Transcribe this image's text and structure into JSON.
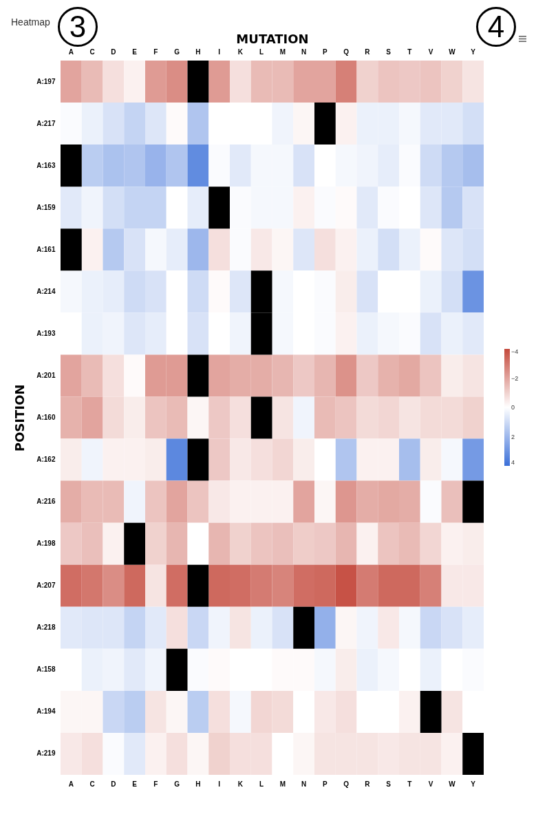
{
  "chart_data": {
    "type": "heatmap",
    "title": "Heatmap",
    "xlabel": "MUTATION",
    "ylabel": "POSITION",
    "categories": [
      "A",
      "C",
      "D",
      "E",
      "F",
      "G",
      "H",
      "I",
      "K",
      "L",
      "M",
      "N",
      "P",
      "Q",
      "R",
      "S",
      "T",
      "V",
      "W",
      "Y"
    ],
    "y_categories": [
      "A:197",
      "A:217",
      "A:163",
      "A:159",
      "A:161",
      "A:214",
      "A:193",
      "A:201",
      "A:160",
      "A:162",
      "A:216",
      "A:198",
      "A:207",
      "A:218",
      "A:158",
      "A:194",
      "A:219"
    ],
    "cells": [
      [
        -2,
        -1.5,
        -0.7,
        -0.3,
        -2.2,
        -2.5,
        null,
        -2.2,
        -0.7,
        -1.5,
        -1.5,
        -2,
        -2,
        -2.8,
        -1,
        -1.3,
        -1.2,
        -1.3,
        -1,
        -0.6
      ],
      [
        0.1,
        0.4,
        0.8,
        1.2,
        0.7,
        -0.1,
        1.6,
        0,
        0,
        0,
        0.3,
        -0.2,
        null,
        -0.3,
        0.4,
        0.4,
        0.2,
        0.6,
        0.6,
        0.9
      ],
      [
        null,
        1.4,
        1.7,
        1.6,
        2.1,
        1.6,
        3.2,
        0.1,
        0.6,
        0.2,
        0.2,
        0.8,
        0,
        0.2,
        0.3,
        0.5,
        0.1,
        1,
        1.5,
        1.8
      ],
      [
        0.6,
        0.3,
        0.9,
        1.2,
        1.2,
        0,
        0.5,
        null,
        0.1,
        0.2,
        0.2,
        -0.3,
        0.1,
        -0.1,
        0.6,
        0.1,
        0,
        0.7,
        1.5,
        0.8
      ],
      [
        null,
        -0.3,
        1.5,
        0.8,
        0.2,
        0.5,
        2,
        -0.7,
        0.1,
        -0.5,
        -0.2,
        0.7,
        -0.7,
        -0.3,
        0.4,
        0.9,
        0.4,
        -0.1,
        0.7,
        0.9
      ],
      [
        0.2,
        0.4,
        0.5,
        1,
        0.8,
        0,
        1,
        -0.1,
        0.7,
        null,
        0.2,
        0,
        0.1,
        -0.4,
        0.8,
        0,
        0,
        0.4,
        0.9,
        3
      ],
      [
        0,
        0.4,
        0.3,
        0.7,
        0.5,
        0,
        0.8,
        0,
        0.3,
        null,
        0.2,
        0,
        0.1,
        -0.3,
        0.4,
        0.2,
        0.1,
        0.8,
        0.4,
        0.6
      ],
      [
        -2,
        -1.5,
        -0.7,
        -0.1,
        -2.2,
        -2.2,
        null,
        -2,
        -1.8,
        -1.8,
        -1.6,
        -1.2,
        -1.6,
        -2.4,
        -1.2,
        -1.7,
        -1.9,
        -1.3,
        -0.4,
        -0.6
      ],
      [
        -1.7,
        -2,
        -0.8,
        -0.4,
        -1.3,
        -1.5,
        -0.2,
        -1.2,
        -0.7,
        null,
        -0.6,
        0.3,
        -1.5,
        -1.3,
        -0.8,
        -0.9,
        -0.6,
        -0.8,
        -0.8,
        -1
      ],
      [
        -0.4,
        0.3,
        -0.3,
        -0.3,
        -0.4,
        3.3,
        null,
        -1.2,
        -0.5,
        -0.7,
        -0.9,
        -0.4,
        0,
        1.6,
        -0.3,
        -0.3,
        1.8,
        -0.4,
        0.2,
        2.8
      ],
      [
        -1.8,
        -1.5,
        -1.5,
        0.3,
        -1.3,
        -2,
        -1.3,
        -0.5,
        -0.3,
        -0.3,
        -0.3,
        -2,
        -0.2,
        -2.3,
        -1.8,
        -1.9,
        -1.8,
        0.1,
        -1.4,
        null
      ],
      [
        -1.2,
        -1.4,
        -0.3,
        null,
        -1,
        -1.6,
        0,
        -1.6,
        -1,
        -1.3,
        -1.4,
        -1.1,
        -1.2,
        -1.6,
        -0.3,
        -1.3,
        -1.5,
        -0.9,
        -0.3,
        -0.4
      ],
      [
        -3.2,
        -3,
        -2.5,
        -3.3,
        -0.6,
        -3.2,
        null,
        -3.3,
        -3.2,
        -2.9,
        -2.7,
        -3.2,
        -3.3,
        -3.8,
        -2.9,
        -3.3,
        -3.3,
        -2.8,
        -0.5,
        -0.5
      ],
      [
        0.6,
        0.7,
        0.7,
        1.2,
        0.6,
        -0.7,
        1.1,
        0.3,
        -0.6,
        0.4,
        0.8,
        null,
        2.2,
        -0.2,
        0.3,
        -0.5,
        0.2,
        1.1,
        0.8,
        0.5
      ],
      [
        0,
        0.4,
        0.3,
        0.6,
        0.3,
        null,
        0.1,
        -0.1,
        0,
        0,
        -0.1,
        -0.1,
        0.2,
        -0.4,
        0.4,
        0.2,
        0,
        0.4,
        0,
        0.1
      ],
      [
        -0.2,
        -0.2,
        1.1,
        1.4,
        -0.6,
        -0.2,
        1.4,
        -0.7,
        0.2,
        -0.9,
        -0.8,
        0,
        -0.5,
        -0.7,
        0,
        0,
        -0.3,
        null,
        -0.6,
        0
      ],
      [
        -0.5,
        -0.7,
        0.1,
        0.6,
        -0.3,
        -0.7,
        -0.2,
        -1,
        -0.7,
        -0.7,
        0,
        -0.2,
        -0.6,
        -0.6,
        -0.6,
        -0.5,
        -0.6,
        -0.6,
        -0.3,
        null
      ]
    ],
    "clim": [
      -4,
      4
    ],
    "cticks": [
      -4,
      -2,
      0,
      2,
      4
    ],
    "annotations": [
      "3",
      "4"
    ]
  }
}
